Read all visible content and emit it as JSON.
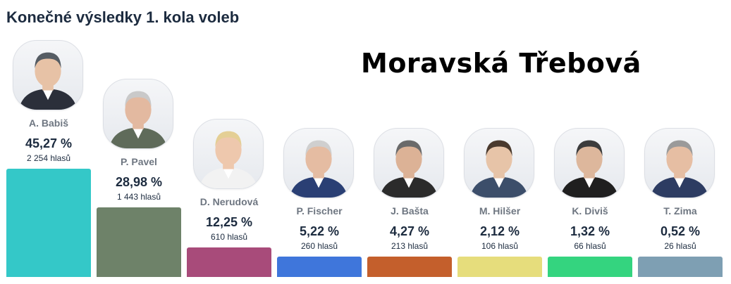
{
  "title": "Konečné výsledky 1. kola voleb",
  "overlay_text": "Moravská Třebová",
  "chart_data": {
    "type": "bar",
    "categories": [
      "A. Babiš",
      "P. Pavel",
      "D. Nerudová",
      "P. Fischer",
      "J. Bašta",
      "M. Hilšer",
      "K. Diviš",
      "T. Zima"
    ],
    "values": [
      45.27,
      28.98,
      12.25,
      5.22,
      4.27,
      2.12,
      1.32,
      0.52
    ],
    "value_labels": [
      "45,27 %",
      "28,98 %",
      "12,25 %",
      "5,22 %",
      "4,27 %",
      "2,12 %",
      "1,32 %",
      "0,52 %"
    ],
    "votes": [
      "2 254 hlasů",
      "1 443 hlasů",
      "610 hlasů",
      "260 hlasů",
      "213 hlasů",
      "106 hlasů",
      "66 hlasů",
      "26 hlasů"
    ],
    "colors": [
      "#34c8c8",
      "#6e8269",
      "#a84b7a",
      "#3f76db",
      "#c45f2c",
      "#e6dd7c",
      "#34d47f",
      "#7e9fb3"
    ],
    "photos": [
      "portrait-icon",
      "portrait-icon",
      "portrait-icon",
      "portrait-icon",
      "portrait-icon",
      "portrait-icon",
      "portrait-icon",
      "portrait-icon"
    ]
  }
}
